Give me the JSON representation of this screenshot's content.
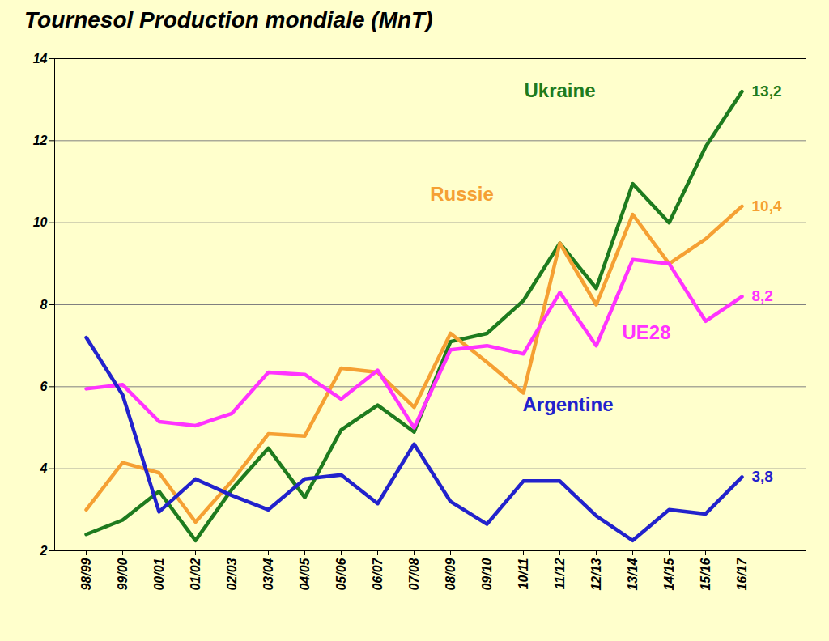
{
  "chart_data": {
    "type": "line",
    "title": "Tournesol Production mondiale (MnT)",
    "categories": [
      "98/99",
      "99/00",
      "00/01",
      "01/02",
      "02/03",
      "03/04",
      "04/05",
      "05/06",
      "06/07",
      "07/08",
      "08/09",
      "09/10",
      "10/11",
      "11/12",
      "12/13",
      "13/14",
      "14/15",
      "15/16",
      "16/17"
    ],
    "series": [
      {
        "name": "Ukraine",
        "color": "#1e7b1e",
        "values": [
          2.4,
          2.75,
          3.45,
          2.25,
          3.5,
          4.5,
          3.3,
          4.95,
          5.55,
          4.9,
          7.1,
          7.3,
          8.1,
          9.5,
          8.4,
          10.95,
          10.0,
          11.85,
          13.2
        ],
        "value_labels": [
          null,
          null,
          null,
          null,
          null,
          null,
          null,
          null,
          null,
          null,
          null,
          null,
          null,
          null,
          null,
          null,
          null,
          null,
          "13,2"
        ]
      },
      {
        "name": "Russie",
        "color": "#f5a033",
        "values": [
          3.0,
          4.15,
          3.9,
          2.7,
          3.7,
          4.85,
          4.8,
          6.45,
          6.35,
          5.5,
          7.3,
          6.6,
          5.85,
          9.5,
          8.0,
          10.2,
          9.0,
          9.6,
          10.4
        ],
        "value_labels": [
          null,
          null,
          null,
          null,
          null,
          null,
          null,
          null,
          null,
          null,
          null,
          null,
          null,
          null,
          null,
          null,
          null,
          null,
          "10,4"
        ]
      },
      {
        "name": "UE28",
        "color": "#ff33ff",
        "values": [
          5.95,
          6.05,
          5.15,
          5.05,
          5.35,
          6.35,
          6.3,
          5.7,
          6.4,
          5.0,
          6.9,
          7.0,
          6.8,
          8.3,
          7.0,
          9.1,
          9.0,
          7.6,
          8.2
        ],
        "value_labels": [
          null,
          null,
          null,
          null,
          null,
          null,
          null,
          null,
          null,
          null,
          null,
          null,
          null,
          null,
          null,
          null,
          null,
          null,
          "8,2"
        ]
      },
      {
        "name": "Argentine",
        "color": "#2222cc",
        "values": [
          7.2,
          5.8,
          2.95,
          3.75,
          3.35,
          3.0,
          3.75,
          3.85,
          3.15,
          4.6,
          3.2,
          2.65,
          3.7,
          3.7,
          2.85,
          2.25,
          3.0,
          2.9,
          3.8
        ],
        "value_labels": [
          null,
          null,
          null,
          null,
          null,
          null,
          null,
          null,
          null,
          null,
          null,
          null,
          null,
          null,
          null,
          null,
          null,
          null,
          "3,8"
        ]
      }
    ],
    "ylim": [
      2,
      14
    ],
    "yticks": [
      2,
      4,
      6,
      8,
      10,
      12,
      14
    ],
    "grid": true,
    "data_labels": true
  }
}
